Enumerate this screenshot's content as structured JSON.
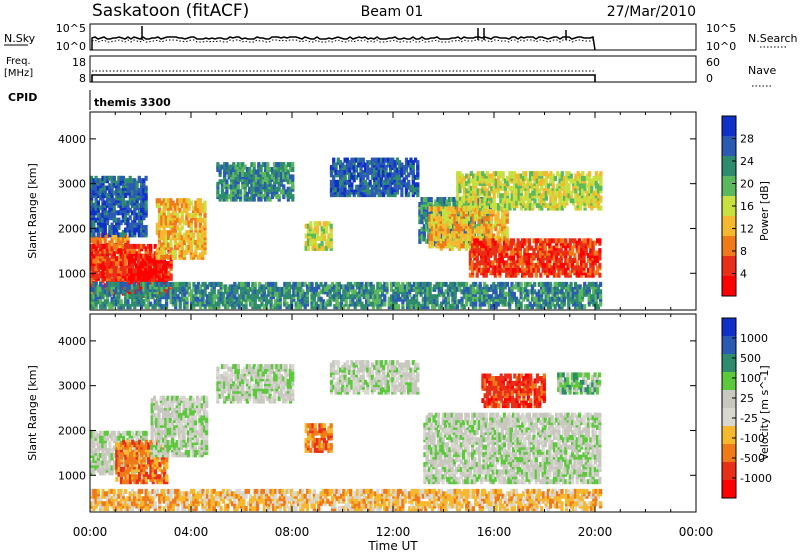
{
  "header": {
    "station": "Saskatoon (fitACF)",
    "beam": "Beam 01",
    "date": "27/Mar/2010"
  },
  "noise_panel": {
    "left_label": "N.Sky",
    "right_label": "N.Search",
    "left_ticks": [
      "10^5",
      "10^0"
    ],
    "right_ticks": [
      "10^5",
      "10^0"
    ]
  },
  "freq_panel": {
    "left_label_1": "Freq.",
    "left_label_2": "[MHz]",
    "right_label": "Nave",
    "left_ticks": [
      "18",
      "8"
    ],
    "right_ticks": [
      "60",
      "0"
    ]
  },
  "cpid": {
    "label": "CPID",
    "value": "themis 3300"
  },
  "colors": {
    "power_scale": [
      "#1030c8",
      "#2a5ab4",
      "#2e8b6e",
      "#5cb85c",
      "#c8e040",
      "#f5b82e",
      "#f07a1a",
      "#e83018",
      "#ff0000"
    ],
    "velocity_scale": [
      "#1030c8",
      "#2a5ab4",
      "#2e8b6e",
      "#5cc83c",
      "#c8c8c0",
      "#d8d8d0",
      "#f5b82e",
      "#f07a1a",
      "#e83018",
      "#ff0000"
    ],
    "ground_scatter": "#c4c4bc"
  },
  "chart_data": [
    {
      "type": "heatmap",
      "name": "power",
      "ylabel": "Slant Range [km]",
      "xlabel": "Time UT",
      "x_ticks": [
        "00:00",
        "04:00",
        "08:00",
        "12:00",
        "16:00",
        "20:00",
        "00:00"
      ],
      "xlim_hours": [
        0,
        24
      ],
      "data_end_hour": 20.2,
      "y_ticks": [
        1000,
        2000,
        3000,
        4000
      ],
      "ylim": [
        180,
        4600
      ],
      "colorbar_label": "Power [dB]",
      "colorbar_ticks": [
        "28",
        "24",
        "20",
        "16",
        "12",
        "8",
        "4"
      ],
      "regions": [
        {
          "t": [
            0.0,
            1.5
          ],
          "r": [
            850,
            1800
          ],
          "level": 6
        },
        {
          "t": [
            0.0,
            3.2
          ],
          "r": [
            500,
            1600
          ],
          "level": 7
        },
        {
          "t": [
            1.5,
            3.0
          ],
          "r": [
            450,
            1300
          ],
          "level": 8
        },
        {
          "t": [
            2.6,
            4.5
          ],
          "r": [
            1300,
            2600
          ],
          "level": 5
        },
        {
          "t": [
            0.0,
            2.2
          ],
          "r": [
            1800,
            3100
          ],
          "level": 1
        },
        {
          "t": [
            5.0,
            8.0
          ],
          "r": [
            2600,
            3400
          ],
          "level": 2
        },
        {
          "t": [
            8.5,
            9.5
          ],
          "r": [
            1500,
            2100
          ],
          "level": 4
        },
        {
          "t": [
            9.5,
            13.0
          ],
          "r": [
            2700,
            3500
          ],
          "level": 1
        },
        {
          "t": [
            13.0,
            15.8
          ],
          "r": [
            1600,
            2600
          ],
          "level": 2
        },
        {
          "t": [
            13.4,
            16.5
          ],
          "r": [
            1500,
            2400
          ],
          "level": 5
        },
        {
          "t": [
            15.0,
            20.2
          ],
          "r": [
            900,
            1700
          ],
          "level": 7
        },
        {
          "t": [
            14.5,
            20.2
          ],
          "r": [
            2400,
            3200
          ],
          "level": 4
        },
        {
          "t": [
            0.0,
            20.2
          ],
          "r": [
            200,
            700
          ],
          "level": 2
        }
      ]
    },
    {
      "type": "heatmap",
      "name": "velocity",
      "ylabel": "Slant Range [km]",
      "xlabel": "Time UT",
      "x_ticks": [
        "00:00",
        "04:00",
        "08:00",
        "12:00",
        "16:00",
        "20:00",
        "00:00"
      ],
      "xlim_hours": [
        0,
        24
      ],
      "data_end_hour": 20.2,
      "y_ticks": [
        1000,
        2000,
        3000,
        4000
      ],
      "ylim": [
        180,
        4600
      ],
      "colorbar_label": "Velocity [m s^-1]",
      "colorbar_ticks": [
        "1000",
        "500",
        "100",
        "25",
        "-25",
        "-100",
        "-500",
        "-1000"
      ],
      "regions": [
        {
          "t": [
            0.0,
            2.2
          ],
          "r": [
            1000,
            1900
          ],
          "level": 4
        },
        {
          "t": [
            1.0,
            3.0
          ],
          "r": [
            800,
            1700
          ],
          "level": 7
        },
        {
          "t": [
            2.4,
            4.6
          ],
          "r": [
            1400,
            2700
          ],
          "level": 4
        },
        {
          "t": [
            5.0,
            8.0
          ],
          "r": [
            2600,
            3400
          ],
          "level": 4
        },
        {
          "t": [
            8.5,
            9.5
          ],
          "r": [
            1500,
            2100
          ],
          "level": 7
        },
        {
          "t": [
            9.5,
            13.0
          ],
          "r": [
            2800,
            3500
          ],
          "level": 4
        },
        {
          "t": [
            13.2,
            20.2
          ],
          "r": [
            800,
            2300
          ],
          "level": 4
        },
        {
          "t": [
            15.5,
            18.0
          ],
          "r": [
            2500,
            3200
          ],
          "level": 8
        },
        {
          "t": [
            18.5,
            20.2
          ],
          "r": [
            2800,
            3200
          ],
          "level": 3
        },
        {
          "t": [
            0.0,
            20.2
          ],
          "r": [
            200,
            600
          ],
          "level": 6
        }
      ]
    }
  ]
}
